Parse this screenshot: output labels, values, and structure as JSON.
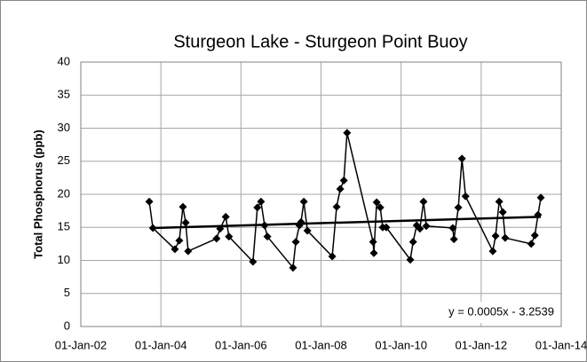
{
  "chart_data": {
    "type": "line",
    "title": "Sturgeon Lake - Sturgeon Point Buoy",
    "y_label": "Total Phosphorus (ppb)",
    "x": [
      2003.71,
      2003.8,
      2004.35,
      2004.46,
      2004.55,
      2004.62,
      2004.68,
      2005.39,
      2005.48,
      2005.62,
      2005.7,
      2006.3,
      2006.41,
      2006.5,
      2006.59,
      2006.66,
      2007.3,
      2007.37,
      2007.46,
      2007.5,
      2007.57,
      2007.66,
      2008.28,
      2008.39,
      2008.48,
      2008.57,
      2008.65,
      2009.3,
      2009.32,
      2009.39,
      2009.48,
      2009.54,
      2009.63,
      2010.23,
      2010.3,
      2010.39,
      2010.47,
      2010.56,
      2010.63,
      2011.29,
      2011.32,
      2011.43,
      2011.52,
      2011.61,
      2012.29,
      2012.36,
      2012.45,
      2012.54,
      2012.6,
      2013.25,
      2013.34,
      2013.42,
      2013.49
    ],
    "series": [
      {
        "name": "Total Phosphorus",
        "color": "#000000",
        "values": [
          18.9,
          14.9,
          11.7,
          13.0,
          18.1,
          15.7,
          11.4,
          13.3,
          14.8,
          16.6,
          13.6,
          9.8,
          18.0,
          18.9,
          15.3,
          13.6,
          8.9,
          12.8,
          15.3,
          15.8,
          18.9,
          14.5,
          10.6,
          18.1,
          20.8,
          22.1,
          29.3,
          12.8,
          11.1,
          18.8,
          18.0,
          15.0,
          15.0,
          10.1,
          12.8,
          15.3,
          14.8,
          18.9,
          15.2,
          14.9,
          13.2,
          18.0,
          25.4,
          19.7,
          11.4,
          13.7,
          18.9,
          17.3,
          13.4,
          12.5,
          13.8,
          16.9,
          19.5
        ]
      }
    ],
    "trendline": {
      "x": [
        2003.8,
        2013.49
      ],
      "values": [
        14.9,
        16.6
      ],
      "color": "#000000",
      "label": "y = 0.0005x - 3.2539"
    },
    "xlim": [
      2002,
      2014
    ],
    "xticks": [
      {
        "value": 2002,
        "label": "01-Jan-02"
      },
      {
        "value": 2004,
        "label": "01-Jan-04"
      },
      {
        "value": 2006,
        "label": "01-Jan-06"
      },
      {
        "value": 2008,
        "label": "01-Jan-08"
      },
      {
        "value": 2010,
        "label": "01-Jan-10"
      },
      {
        "value": 2012,
        "label": "01-Jan-12"
      },
      {
        "value": 2014,
        "label": "01-Jan-14"
      }
    ],
    "ylim": [
      0,
      40
    ],
    "yticks": [
      0,
      5,
      10,
      15,
      20,
      25,
      30,
      35,
      40
    ],
    "grid": true
  }
}
